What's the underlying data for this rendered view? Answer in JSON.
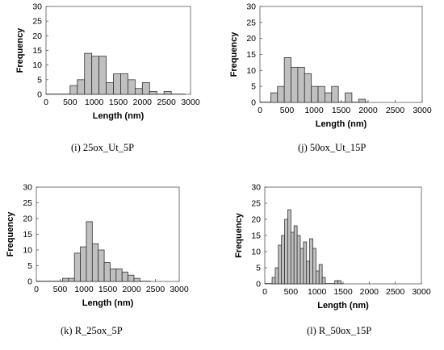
{
  "chart_data": [
    {
      "type": "bar",
      "caption": "(i) 25ox_Ut_5P",
      "xlabel": "Length (nm)",
      "ylabel": "Frequency",
      "xlim": [
        0,
        3000
      ],
      "ylim": [
        0,
        30
      ],
      "xticks": [
        0,
        500,
        1000,
        1500,
        2000,
        2500,
        3000
      ],
      "yticks": [
        0,
        5,
        10,
        15,
        20,
        25,
        30
      ],
      "bin_width": 150,
      "bin_starts": [
        500,
        650,
        800,
        950,
        1100,
        1250,
        1400,
        1550,
        1700,
        1850,
        2000,
        2150,
        2300,
        2450,
        2600
      ],
      "values": [
        3,
        5,
        14,
        13,
        13,
        4,
        7,
        7,
        5,
        2,
        4,
        1,
        0,
        1,
        0
      ],
      "baseline_range": [
        0,
        2900
      ]
    },
    {
      "type": "bar",
      "caption": "(j) 50ox_Ut_15P",
      "xlabel": "Length (nm)",
      "ylabel": "Frequency",
      "xlim": [
        0,
        3000
      ],
      "ylim": [
        0,
        30
      ],
      "xticks": [
        0,
        500,
        1000,
        1500,
        2000,
        2500,
        3000
      ],
      "yticks": [
        0,
        5,
        10,
        15,
        20,
        25,
        30
      ],
      "bin_width": 125,
      "bin_starts": [
        200,
        325,
        450,
        575,
        700,
        825,
        950,
        1075,
        1200,
        1325,
        1450,
        1575,
        1700,
        1825
      ],
      "values": [
        3,
        5,
        14,
        11,
        11,
        9,
        5,
        5,
        3,
        5,
        0,
        3,
        0,
        1
      ],
      "baseline_range": [
        0,
        2000
      ]
    },
    {
      "type": "bar",
      "caption": "(k) R_25ox_5P",
      "xlabel": "Length (nm)",
      "ylabel": "Frequency",
      "xlim": [
        0,
        3000
      ],
      "ylim": [
        0,
        30
      ],
      "xticks": [
        0,
        500,
        1000,
        1500,
        2000,
        2500,
        3000
      ],
      "yticks": [
        0,
        5,
        10,
        15,
        20,
        25,
        30
      ],
      "bin_width": 125,
      "bin_starts": [
        550,
        675,
        800,
        925,
        1050,
        1175,
        1300,
        1425,
        1550,
        1675,
        1800,
        1925,
        2050
      ],
      "values": [
        1,
        1,
        9,
        11,
        19,
        12,
        10,
        6,
        4,
        4,
        3,
        2,
        1
      ],
      "baseline_range": [
        0,
        2400
      ]
    },
    {
      "type": "bar",
      "caption": "(l) R_50ox_15P",
      "xlabel": "Length (nm)",
      "ylabel": "Frequency",
      "xlim": [
        0,
        3000
      ],
      "ylim": [
        0,
        30
      ],
      "xticks": [
        0,
        500,
        1000,
        1500,
        2000,
        2500,
        3000
      ],
      "yticks": [
        0,
        5,
        10,
        15,
        20,
        25,
        30
      ],
      "bin_width": 60,
      "bin_starts": [
        140,
        200,
        260,
        320,
        380,
        440,
        500,
        560,
        620,
        680,
        740,
        800,
        860,
        920,
        980,
        1040,
        1100,
        1160,
        1220,
        1280,
        1340,
        1400,
        1460
      ],
      "values": [
        2,
        5,
        12,
        15,
        20,
        23,
        16,
        18,
        15,
        11,
        13,
        7,
        14,
        11,
        4,
        6,
        2,
        0,
        0,
        0,
        1,
        1,
        0
      ],
      "baseline_range": [
        0,
        1500
      ]
    }
  ]
}
